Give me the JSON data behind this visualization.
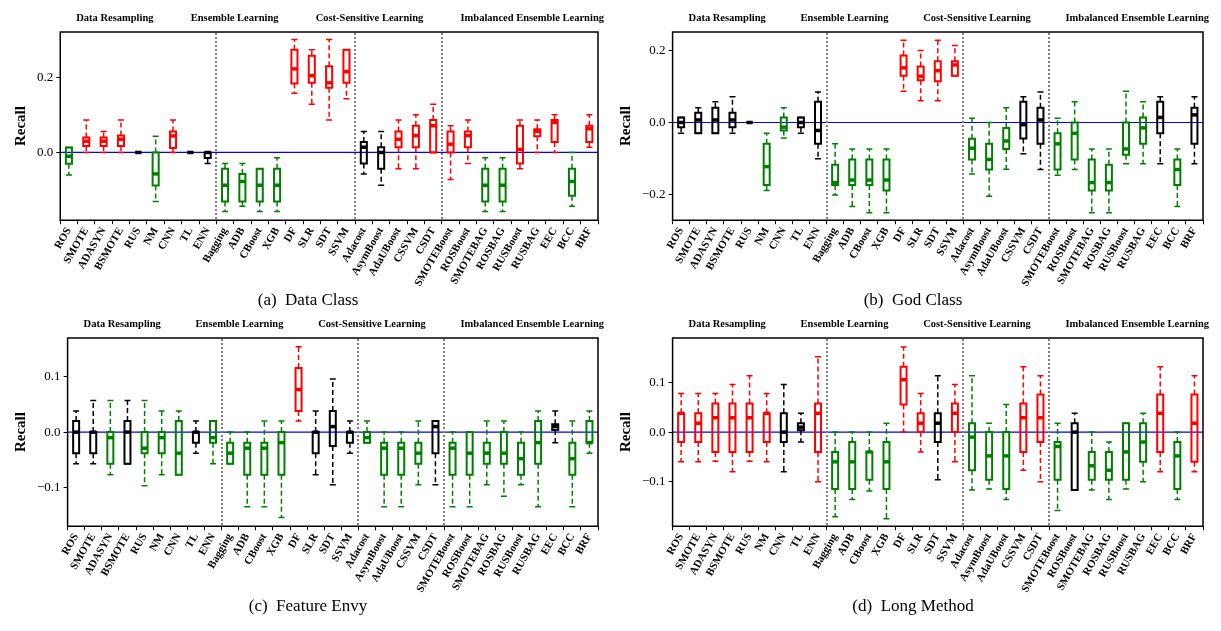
{
  "chart_data": [
    {
      "type": "box",
      "title": "(a)  Data Class",
      "ylabel": "Recall",
      "line_style": "dashed",
      "categories": [
        "ROS",
        "SMOTE",
        "ADASYN",
        "BSMOTE",
        "RUS",
        "NM",
        "CNN",
        "TL",
        "ENN",
        "Bagging",
        "ADB",
        "CBoost",
        "XGB",
        "DF",
        "SLR",
        "SDT",
        "SSVM",
        "Adacost",
        "AsymBoost",
        "AdaUBoost",
        "CSSVM",
        "CSDT",
        "SMOTEBoost",
        "ROSBoost",
        "SMOTEBAG",
        "ROSBAG",
        "RUSBoost",
        "RUSBAG",
        "EEC",
        "BCC",
        "BRF"
      ],
      "series": [
        {
          "color": "#ff0000",
          "boxes": [
            null,
            {
              "low": 0,
              "q1": 0.017,
              "median": 0.03,
              "q3": 0.04,
              "high": 0.086
            },
            {
              "low": 0,
              "q1": 0.017,
              "median": 0.03,
              "q3": 0.04,
              "high": 0.056
            },
            {
              "low": 0,
              "q1": 0.017,
              "median": 0.035,
              "q3": 0.045,
              "high": 0.086
            },
            null,
            null,
            {
              "low": 0,
              "q1": 0.012,
              "median": 0.044,
              "q3": 0.056,
              "high": 0.086
            },
            null,
            null,
            null,
            null,
            null,
            null,
            {
              "low": 0.157,
              "q1": 0.183,
              "median": 0.222,
              "q3": 0.273,
              "high": 0.3
            },
            {
              "low": 0.128,
              "q1": 0.185,
              "median": 0.204,
              "q3": 0.257,
              "high": 0.273
            },
            {
              "low": 0.086,
              "q1": 0.172,
              "median": 0.185,
              "q3": 0.229,
              "high": 0.3
            },
            {
              "low": 0.143,
              "q1": 0.185,
              "median": 0.215,
              "q3": 0.273,
              "high": 0.273
            },
            null,
            null,
            {
              "low": -0.043,
              "q1": 0.014,
              "median": 0.035,
              "q3": 0.056,
              "high": 0.086
            },
            {
              "low": -0.043,
              "q1": 0.014,
              "median": 0.045,
              "q3": 0.071,
              "high": 0.1
            },
            {
              "low": 0,
              "q1": 0,
              "median": 0.071,
              "q3": 0.086,
              "high": 0.128
            },
            {
              "low": -0.072,
              "q1": 0,
              "median": 0.022,
              "q3": 0.056,
              "high": 0.071
            },
            {
              "low": -0.029,
              "q1": 0.014,
              "median": 0.045,
              "q3": 0.056,
              "high": 0.086
            },
            null,
            null,
            {
              "low": -0.043,
              "q1": -0.029,
              "median": 0.008,
              "q3": 0.071,
              "high": 0.086
            },
            {
              "low": 0,
              "q1": 0.043,
              "median": 0.056,
              "q3": 0.062,
              "high": 0.086
            },
            {
              "low": 0,
              "q1": 0.028,
              "median": 0.08,
              "q3": 0.086,
              "high": 0.1
            },
            null,
            {
              "low": 0.014,
              "q1": 0.028,
              "median": 0.063,
              "q3": 0.071,
              "high": 0.1
            }
          ]
        },
        {
          "color": "#008000",
          "boxes": [
            {
              "low": -0.06,
              "q1": -0.03,
              "median": -0.01,
              "q3": 0.013,
              "high": 0.013
            },
            null,
            null,
            null,
            null,
            {
              "low": -0.13,
              "q1": -0.088,
              "median": -0.057,
              "q3": 0,
              "high": 0.043
            },
            null,
            null,
            null,
            {
              "low": -0.157,
              "q1": -0.13,
              "median": -0.087,
              "q3": -0.043,
              "high": -0.029
            },
            {
              "low": -0.143,
              "q1": -0.13,
              "median": -0.077,
              "q3": -0.057,
              "high": -0.029
            },
            {
              "low": -0.157,
              "q1": -0.13,
              "median": -0.087,
              "q3": -0.043,
              "high": -0.043
            },
            {
              "low": -0.157,
              "q1": -0.13,
              "median": -0.087,
              "q3": -0.043,
              "high": -0.014
            },
            null,
            null,
            null,
            null,
            null,
            null,
            null,
            null,
            null,
            null,
            null,
            {
              "low": -0.157,
              "q1": -0.13,
              "median": -0.087,
              "q3": -0.043,
              "high": -0.014
            },
            {
              "low": -0.157,
              "q1": -0.13,
              "median": -0.087,
              "q3": -0.043,
              "high": -0.014
            },
            null,
            null,
            null,
            {
              "low": -0.143,
              "q1": -0.115,
              "median": -0.077,
              "q3": -0.043,
              "high": 0
            },
            null
          ]
        },
        {
          "color": "#000000",
          "boxes": [
            null,
            null,
            null,
            null,
            {
              "low": 0,
              "q1": 0,
              "median": 0,
              "q3": 0,
              "high": 0
            },
            null,
            null,
            {
              "low": 0,
              "q1": 0,
              "median": 0,
              "q3": 0,
              "high": 0
            },
            {
              "low": -0.029,
              "q1": -0.015,
              "median": 0,
              "q3": 0,
              "high": 0
            },
            null,
            null,
            null,
            null,
            null,
            null,
            null,
            null,
            {
              "low": -0.057,
              "q1": -0.029,
              "median": 0.014,
              "q3": 0.028,
              "high": 0.056
            },
            {
              "low": -0.087,
              "q1": -0.043,
              "median": 0,
              "q3": 0.014,
              "high": 0.056
            },
            null,
            null,
            null,
            null,
            null,
            null,
            null,
            null,
            null,
            null,
            null,
            null
          ]
        }
      ],
      "ylim": [
        -0.18,
        0.32
      ],
      "yticks": [
        {
          "value": 0,
          "label": "0.0"
        },
        {
          "value": 0.2,
          "label": "0.2"
        }
      ],
      "ref_lines": [
        {
          "axis": "y",
          "value": 0,
          "color": "#0000ff"
        }
      ],
      "annotations": [
        "Data Resampling",
        "Ensemble Learning",
        "Cost-Sensitive Learning",
        "Imbalanced Ensemble Learning"
      ]
    },
    {
      "type": "box",
      "title": "(b)  God Class",
      "ylabel": "Recall",
      "line_style": "dashed",
      "categories": [
        "ROS",
        "SMOTE",
        "ADASYN",
        "BSMOTE",
        "RUS",
        "NM",
        "CNN",
        "TL",
        "ENN",
        "Bagging",
        "ADB",
        "CBoost",
        "XGB",
        "DF",
        "SLR",
        "SDT",
        "SSVM",
        "Adacost",
        "AsymBoost",
        "AdaUBoost",
        "CSSVM",
        "CSDT",
        "SMOTEBoost",
        "ROSBoost",
        "SMOTEBAG",
        "ROSBAG",
        "RUSBoost",
        "RUSBAG",
        "EEC",
        "BCC",
        "BRF"
      ],
      "series": [
        {
          "color": "#ff0000",
          "boxes": [
            null,
            null,
            null,
            null,
            null,
            null,
            null,
            null,
            null,
            null,
            null,
            null,
            null,
            {
              "low": 0.086,
              "q1": 0.129,
              "median": 0.151,
              "q3": 0.185,
              "high": 0.227
            },
            {
              "low": 0.06,
              "q1": 0.117,
              "median": 0.128,
              "q3": 0.155,
              "high": 0.199
            },
            {
              "low": 0.06,
              "q1": 0.114,
              "median": 0.143,
              "q3": 0.169,
              "high": 0.227
            },
            {
              "low": 0.129,
              "q1": 0.129,
              "median": 0.159,
              "q3": 0.169,
              "high": 0.213
            },
            null,
            null,
            null,
            null,
            null,
            null,
            null,
            null,
            null,
            null,
            null,
            null,
            null,
            null
          ]
        },
        {
          "color": "#008000",
          "boxes": [
            null,
            null,
            null,
            null,
            null,
            {
              "low": -0.188,
              "q1": -0.173,
              "median": -0.122,
              "q3": -0.059,
              "high": -0.03
            },
            {
              "low": -0.043,
              "q1": -0.022,
              "median": -0.013,
              "q3": 0.014,
              "high": 0.041
            },
            null,
            null,
            {
              "low": -0.2,
              "q1": -0.173,
              "median": -0.166,
              "q3": -0.117,
              "high": -0.059
            },
            {
              "low": -0.232,
              "q1": -0.173,
              "median": -0.159,
              "q3": -0.102,
              "high": -0.073
            },
            {
              "low": -0.249,
              "q1": -0.173,
              "median": -0.159,
              "q3": -0.102,
              "high": -0.073
            },
            {
              "low": -0.249,
              "q1": -0.188,
              "median": -0.159,
              "q3": -0.102,
              "high": -0.073
            },
            null,
            null,
            null,
            null,
            {
              "low": -0.142,
              "q1": -0.102,
              "median": -0.071,
              "q3": -0.045,
              "high": 0.012
            },
            {
              "low": -0.204,
              "q1": -0.13,
              "median": -0.102,
              "q3": -0.059,
              "high": 0
            },
            {
              "low": -0.129,
              "q1": -0.073,
              "median": -0.051,
              "q3": -0.015,
              "high": 0.041
            },
            null,
            null,
            {
              "low": -0.146,
              "q1": -0.13,
              "median": -0.059,
              "q3": -0.03,
              "high": 0.012
            },
            {
              "low": -0.13,
              "q1": -0.102,
              "median": -0.03,
              "q3": 0,
              "high": 0.057
            },
            {
              "low": -0.249,
              "q1": -0.188,
              "median": -0.166,
              "q3": -0.102,
              "high": -0.073
            },
            {
              "low": -0.249,
              "q1": -0.188,
              "median": -0.166,
              "q3": -0.117,
              "high": -0.073
            },
            {
              "low": -0.114,
              "q1": -0.089,
              "median": -0.073,
              "q3": 0,
              "high": 0.086
            },
            {
              "low": -0.114,
              "q1": -0.059,
              "median": -0.015,
              "q3": 0.014,
              "high": 0.057
            },
            null,
            {
              "low": -0.232,
              "q1": -0.173,
              "median": -0.13,
              "q3": -0.102,
              "high": -0.073
            },
            null
          ]
        },
        {
          "color": "#000000",
          "boxes": [
            {
              "low": -0.03,
              "q1": -0.013,
              "median": 0,
              "q3": 0.014,
              "high": 0.014
            },
            {
              "low": -0.03,
              "q1": -0.03,
              "median": 0.007,
              "q3": 0.027,
              "high": 0.041
            },
            {
              "low": -0.03,
              "q1": -0.03,
              "median": 0.007,
              "q3": 0.041,
              "high": 0.057
            },
            {
              "low": -0.03,
              "q1": -0.013,
              "median": 0.007,
              "q3": 0.027,
              "high": 0.071
            },
            {
              "low": 0,
              "q1": 0,
              "median": 0,
              "q3": 0,
              "high": 0
            },
            null,
            null,
            {
              "low": -0.03,
              "q1": -0.013,
              "median": 0,
              "q3": 0.014,
              "high": 0.014
            },
            {
              "low": -0.1,
              "q1": -0.059,
              "median": -0.022,
              "q3": 0.057,
              "high": 0.084
            },
            null,
            null,
            null,
            null,
            null,
            null,
            null,
            null,
            null,
            null,
            null,
            {
              "low": -0.086,
              "q1": -0.044,
              "median": -0.006,
              "q3": 0.057,
              "high": 0.071
            },
            {
              "low": -0.13,
              "q1": -0.059,
              "median": 0.007,
              "q3": 0.041,
              "high": 0.084
            },
            null,
            null,
            null,
            null,
            null,
            null,
            {
              "low": -0.114,
              "q1": -0.03,
              "median": 0.014,
              "q3": 0.057,
              "high": 0.071
            },
            null,
            {
              "low": -0.114,
              "q1": -0.059,
              "median": 0.021,
              "q3": 0.041,
              "high": 0.071
            }
          ]
        }
      ],
      "ylim": [
        -0.27,
        0.25
      ],
      "yticks": [
        {
          "value": -0.2,
          "label": "−0.2"
        },
        {
          "value": 0,
          "label": "0.0"
        },
        {
          "value": 0.2,
          "label": "0.2"
        }
      ],
      "ref_lines": [
        {
          "axis": "y",
          "value": 0,
          "color": "#0000ff"
        }
      ],
      "annotations": [
        "Data Resampling",
        "Ensemble Learning",
        "Cost-Sensitive Learning",
        "Imbalanced Ensemble Learning"
      ]
    },
    {
      "type": "box",
      "title": "(c)  Feature Envy",
      "ylabel": "Recall",
      "line_style": "dashed",
      "categories": [
        "ROS",
        "SMOTE",
        "ADASYN",
        "BSMOTE",
        "RUS",
        "NM",
        "CNN",
        "TL",
        "ENN",
        "Bagging",
        "ADB",
        "CBoost",
        "XGB",
        "DF",
        "SLR",
        "SDT",
        "SSVM",
        "Adacost",
        "AsymBoost",
        "AdaUBoost",
        "CSSVM",
        "CSDT",
        "SMOTEBoost",
        "ROSBoost",
        "SMOTEBAG",
        "ROSBAG",
        "RUSBoost",
        "RUSBAG",
        "EEC",
        "BCC",
        "BRF"
      ],
      "series": [
        {
          "color": "#ff0000",
          "boxes": [
            null,
            null,
            null,
            null,
            null,
            null,
            null,
            null,
            null,
            null,
            null,
            null,
            null,
            {
              "low": 0.02,
              "q1": 0.038,
              "median": 0.077,
              "q3": 0.116,
              "high": 0.154
            },
            null,
            null,
            null,
            null,
            null,
            null,
            null,
            null,
            null,
            null,
            null,
            null,
            null,
            null,
            null,
            null,
            null
          ]
        },
        {
          "color": "#008000",
          "boxes": [
            null,
            null,
            {
              "low": -0.077,
              "q1": -0.057,
              "median": -0.01,
              "q3": 0,
              "high": 0.057
            },
            null,
            {
              "low": -0.097,
              "q1": -0.038,
              "median": -0.029,
              "q3": 0,
              "high": 0.057
            },
            {
              "low": -0.077,
              "q1": -0.038,
              "median": -0.01,
              "q3": 0,
              "high": 0.038
            },
            {
              "low": -0.077,
              "q1": -0.077,
              "median": -0.038,
              "q3": 0.02,
              "high": 0.038
            },
            null,
            {
              "low": -0.057,
              "q1": -0.019,
              "median": -0.01,
              "q3": 0.02,
              "high": 0.02
            },
            {
              "low": -0.057,
              "q1": -0.057,
              "median": -0.038,
              "q3": -0.019,
              "high": 0
            },
            {
              "low": -0.135,
              "q1": -0.077,
              "median": -0.029,
              "q3": -0.019,
              "high": 0
            },
            {
              "low": -0.135,
              "q1": -0.077,
              "median": -0.029,
              "q3": -0.019,
              "high": 0.02
            },
            {
              "low": -0.154,
              "q1": -0.077,
              "median": -0.019,
              "q3": 0,
              "high": 0.02
            },
            null,
            null,
            null,
            null,
            {
              "low": -0.019,
              "q1": -0.019,
              "median": -0.01,
              "q3": 0,
              "high": 0.02
            },
            {
              "low": -0.135,
              "q1": -0.077,
              "median": -0.029,
              "q3": -0.019,
              "high": 0
            },
            {
              "low": -0.135,
              "q1": -0.077,
              "median": -0.029,
              "q3": -0.019,
              "high": 0
            },
            {
              "low": -0.095,
              "q1": -0.057,
              "median": -0.038,
              "q3": -0.019,
              "high": 0.02
            },
            null,
            {
              "low": -0.135,
              "q1": -0.077,
              "median": -0.029,
              "q3": -0.019,
              "high": 0
            },
            {
              "low": -0.135,
              "q1": -0.077,
              "median": -0.038,
              "q3": 0,
              "high": 0
            },
            {
              "low": -0.095,
              "q1": -0.057,
              "median": -0.038,
              "q3": -0.019,
              "high": 0.02
            },
            {
              "low": -0.116,
              "q1": -0.057,
              "median": -0.038,
              "q3": 0,
              "high": 0.02
            },
            {
              "low": -0.095,
              "q1": -0.077,
              "median": -0.048,
              "q3": -0.019,
              "high": 0
            },
            {
              "low": -0.135,
              "q1": -0.057,
              "median": -0.019,
              "q3": 0.02,
              "high": 0.038
            },
            null,
            {
              "low": -0.135,
              "q1": -0.077,
              "median": -0.048,
              "q3": -0.019,
              "high": 0.02
            },
            {
              "low": -0.038,
              "q1": -0.019,
              "median": -0.019,
              "q3": 0.02,
              "high": 0.038
            }
          ]
        },
        {
          "color": "#000000",
          "boxes": [
            {
              "low": -0.057,
              "q1": -0.038,
              "median": 0,
              "q3": 0.02,
              "high": 0.038
            },
            {
              "low": -0.057,
              "q1": -0.038,
              "median": 0,
              "q3": 0,
              "high": 0.057
            },
            null,
            {
              "low": -0.057,
              "q1": -0.057,
              "median": 0,
              "q3": 0.02,
              "high": 0.057
            },
            null,
            null,
            null,
            {
              "low": -0.038,
              "q1": -0.019,
              "median": 0,
              "q3": 0,
              "high": 0.02
            },
            null,
            null,
            null,
            null,
            null,
            null,
            {
              "low": -0.077,
              "q1": -0.038,
              "median": 0,
              "q3": 0,
              "high": 0.038
            },
            {
              "low": -0.095,
              "q1": -0.025,
              "median": 0.01,
              "q3": 0.038,
              "high": 0.096
            },
            {
              "low": -0.038,
              "q1": -0.019,
              "median": 0,
              "q3": 0,
              "high": 0.02
            },
            null,
            null,
            null,
            null,
            {
              "low": -0.095,
              "q1": -0.038,
              "median": 0.01,
              "q3": 0.02,
              "high": 0.02
            },
            null,
            null,
            null,
            null,
            null,
            null,
            {
              "low": -0.019,
              "q1": 0.004,
              "median": 0.01,
              "q3": 0.014,
              "high": 0.038
            },
            null,
            null
          ]
        }
      ],
      "ylim": [
        -0.17,
        0.17
      ],
      "yticks": [
        {
          "value": -0.1,
          "label": "−0.1"
        },
        {
          "value": 0,
          "label": "0.0"
        },
        {
          "value": 0.1,
          "label": "0.1"
        }
      ],
      "ref_lines": [
        {
          "axis": "y",
          "value": 0,
          "color": "#0000ff"
        }
      ],
      "annotations": [
        "Data Resampling",
        "Ensemble Learning",
        "Cost-Sensitive Learning",
        "Imbalanced Ensemble Learning"
      ]
    },
    {
      "type": "box",
      "title": "(d)  Long Method",
      "ylabel": "Recall",
      "line_style": "dashed",
      "categories": [
        "ROS",
        "SMOTE",
        "ADASYN",
        "BSMOTE",
        "RUS",
        "NM",
        "CNN",
        "TL",
        "ENN",
        "Bagging",
        "ADB",
        "CBoost",
        "XGB",
        "DF",
        "SLR",
        "SDT",
        "SSVM",
        "Adacost",
        "AsymBoost",
        "AdaUBoost",
        "CSSVM",
        "CSDT",
        "SMOTEBoost",
        "ROSBoost",
        "SMOTEBAG",
        "ROSBAG",
        "RUSBoost",
        "RUSBAG",
        "EEC",
        "BCC",
        "BRF"
      ],
      "series": [
        {
          "color": "#ff0000",
          "boxes": [
            {
              "low": -0.06,
              "q1": -0.02,
              "median": 0.038,
              "q3": 0.038,
              "high": 0.078
            },
            {
              "low": -0.06,
              "q1": -0.02,
              "median": 0.018,
              "q3": 0.038,
              "high": 0.078
            },
            {
              "low": -0.059,
              "q1": -0.04,
              "median": 0.029,
              "q3": 0.058,
              "high": 0.078
            },
            {
              "low": -0.08,
              "q1": -0.04,
              "median": 0.029,
              "q3": 0.058,
              "high": 0.096
            },
            {
              "low": -0.059,
              "q1": -0.04,
              "median": 0.029,
              "q3": 0.058,
              "high": 0.114
            },
            {
              "low": -0.06,
              "q1": -0.02,
              "median": 0.038,
              "q3": 0.038,
              "high": 0.078
            },
            null,
            null,
            {
              "low": -0.1,
              "q1": -0.04,
              "median": 0.038,
              "q3": 0.058,
              "high": 0.152
            },
            null,
            null,
            null,
            null,
            {
              "low": 0,
              "q1": 0.056,
              "median": 0.106,
              "q3": 0.132,
              "high": 0.172
            },
            {
              "low": -0.04,
              "q1": 0,
              "median": 0.018,
              "q3": 0.038,
              "high": 0.078
            },
            null,
            {
              "low": -0.06,
              "q1": 0,
              "median": 0.038,
              "q3": 0.058,
              "high": 0.096
            },
            null,
            null,
            null,
            {
              "low": -0.077,
              "q1": -0.04,
              "median": 0.029,
              "q3": 0.058,
              "high": 0.132
            },
            {
              "low": -0.1,
              "q1": -0.02,
              "median": 0.029,
              "q3": 0.076,
              "high": 0.114
            },
            null,
            null,
            null,
            null,
            null,
            null,
            {
              "low": -0.08,
              "q1": -0.04,
              "median": 0.038,
              "q3": 0.076,
              "high": 0.132
            },
            null,
            {
              "low": -0.08,
              "q1": -0.06,
              "median": 0.018,
              "q3": 0.076,
              "high": 0.114
            }
          ]
        },
        {
          "color": "#008000",
          "boxes": [
            null,
            null,
            null,
            null,
            null,
            null,
            null,
            null,
            null,
            {
              "low": -0.171,
              "q1": -0.115,
              "median": -0.06,
              "q3": -0.04,
              "high": 0
            },
            {
              "low": -0.136,
              "q1": -0.115,
              "median": -0.06,
              "q3": -0.02,
              "high": 0
            },
            {
              "low": -0.119,
              "q1": -0.096,
              "median": -0.04,
              "q3": -0.04,
              "high": 0
            },
            {
              "low": -0.175,
              "q1": -0.115,
              "median": -0.06,
              "q3": -0.02,
              "high": 0.018
            },
            null,
            null,
            null,
            null,
            {
              "low": -0.117,
              "q1": -0.077,
              "median": -0.01,
              "q3": 0.018,
              "high": 0.114
            },
            {
              "low": -0.115,
              "q1": -0.096,
              "median": -0.048,
              "q3": 0,
              "high": 0.018
            },
            {
              "low": -0.136,
              "q1": -0.115,
              "median": -0.048,
              "q3": 0,
              "high": 0.056
            },
            null,
            null,
            {
              "low": -0.158,
              "q1": -0.096,
              "median": -0.029,
              "q3": -0.02,
              "high": 0.018
            },
            null,
            {
              "low": -0.117,
              "q1": -0.096,
              "median": -0.068,
              "q3": -0.04,
              "high": 0
            },
            {
              "low": -0.136,
              "q1": -0.096,
              "median": -0.077,
              "q3": -0.04,
              "high": -0.02
            },
            {
              "low": -0.115,
              "q1": -0.096,
              "median": -0.04,
              "q3": 0.018,
              "high": 0.018
            },
            {
              "low": -0.1,
              "q1": -0.06,
              "median": -0.02,
              "q3": 0.018,
              "high": 0.038
            },
            null,
            {
              "low": -0.136,
              "q1": -0.115,
              "median": -0.048,
              "q3": -0.02,
              "high": 0
            },
            null
          ]
        },
        {
          "color": "#000000",
          "boxes": [
            null,
            null,
            null,
            null,
            null,
            null,
            {
              "low": -0.08,
              "q1": -0.02,
              "median": 0,
              "q3": 0.038,
              "high": 0.096
            },
            {
              "low": -0.02,
              "q1": 0.004,
              "median": 0.01,
              "q3": 0.018,
              "high": 0.038
            },
            null,
            null,
            null,
            null,
            null,
            null,
            null,
            {
              "low": -0.096,
              "q1": -0.02,
              "median": 0.018,
              "q3": 0.038,
              "high": 0.114
            },
            null,
            null,
            null,
            null,
            null,
            null,
            null,
            {
              "low": -0.117,
              "q1": -0.117,
              "median": 0,
              "q3": 0.018,
              "high": 0.038
            },
            null,
            null,
            null,
            null,
            null,
            null,
            null
          ]
        }
      ],
      "ylim": [
        -0.19,
        0.19
      ],
      "yticks": [
        {
          "value": -0.1,
          "label": "−0.1"
        },
        {
          "value": 0,
          "label": "0.0"
        },
        {
          "value": 0.1,
          "label": "0.1"
        }
      ],
      "ref_lines": [
        {
          "axis": "y",
          "value": 0,
          "color": "#0000ff"
        }
      ],
      "annotations": [
        "Data Resampling",
        "Ensemble Learning",
        "Cost-Sensitive Learning",
        "Imbalanced Ensemble Learning"
      ]
    }
  ]
}
